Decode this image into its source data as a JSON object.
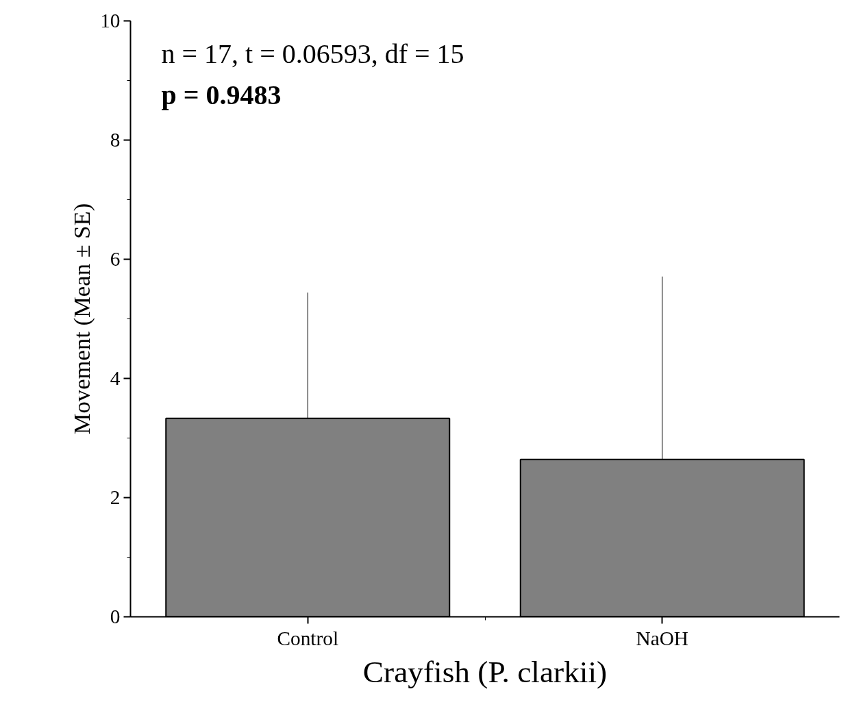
{
  "chart_data": {
    "type": "bar",
    "categories": [
      "Control",
      "NaOH"
    ],
    "values": [
      3.33,
      2.64
    ],
    "color": "#808080",
    "errors": [
      [
        3.33,
        5.44
      ],
      [
        2.64,
        5.71
      ]
    ],
    "xlabel": "Crayfish (P. clarkii)",
    "ylabel": "Movement (Mean ± SE)",
    "annotations": [
      "n = 17, t = 0.06593, df = 15",
      "p = 0.9483"
    ],
    "ylim": [
      0,
      10
    ],
    "yticks": [
      0,
      2,
      4,
      6,
      8,
      10
    ],
    "grid": false
  }
}
